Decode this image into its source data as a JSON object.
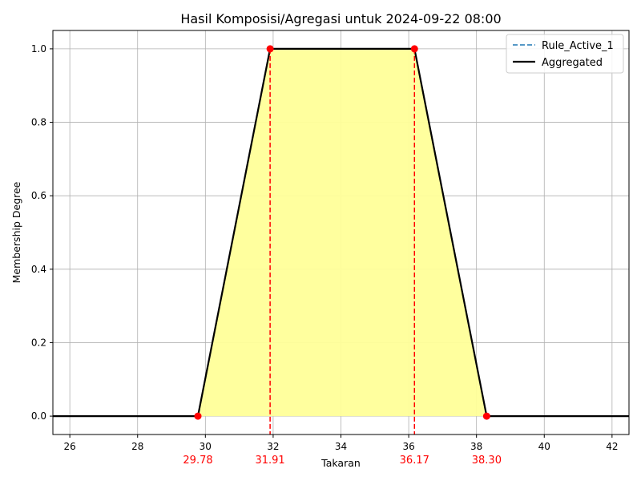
{
  "chart_data": {
    "type": "line",
    "title": "Hasil Komposisi/Agregasi untuk 2024-09-22 08:00",
    "xlabel": "Takaran",
    "ylabel": "Membership Degree",
    "xlim": [
      25.5,
      42.5
    ],
    "ylim": [
      -0.05,
      1.05
    ],
    "xticks": [
      26,
      28,
      30,
      32,
      34,
      36,
      38,
      40,
      42
    ],
    "yticks": [
      0.0,
      0.2,
      0.4,
      0.6,
      0.8,
      1.0
    ],
    "ytick_labels": [
      "0.0",
      "0.2",
      "0.4",
      "0.6",
      "0.8",
      "1.0"
    ],
    "grid": true,
    "legend_position": "top-right",
    "series": [
      {
        "name": "Rule_Active_1",
        "style": "dashed",
        "color": "#1f77b4",
        "x": [
          25.5,
          29.78,
          31.91,
          36.17,
          38.3,
          42.5
        ],
        "y": [
          0,
          0,
          1,
          1,
          0,
          0
        ]
      },
      {
        "name": "Aggregated",
        "style": "solid",
        "color": "#000000",
        "fill": "#ffff99",
        "x": [
          25.5,
          29.78,
          31.91,
          36.17,
          38.3,
          42.5
        ],
        "y": [
          0,
          0,
          1,
          1,
          0,
          0
        ]
      }
    ],
    "key_points": [
      {
        "x": 29.78,
        "y": 0,
        "label": "29.78"
      },
      {
        "x": 31.91,
        "y": 1,
        "label": "31.91"
      },
      {
        "x": 36.17,
        "y": 1,
        "label": "36.17"
      },
      {
        "x": 38.3,
        "y": 0,
        "label": "38.30"
      }
    ],
    "vlines": [
      31.91,
      36.17
    ],
    "marker_color": "#ff0000"
  }
}
